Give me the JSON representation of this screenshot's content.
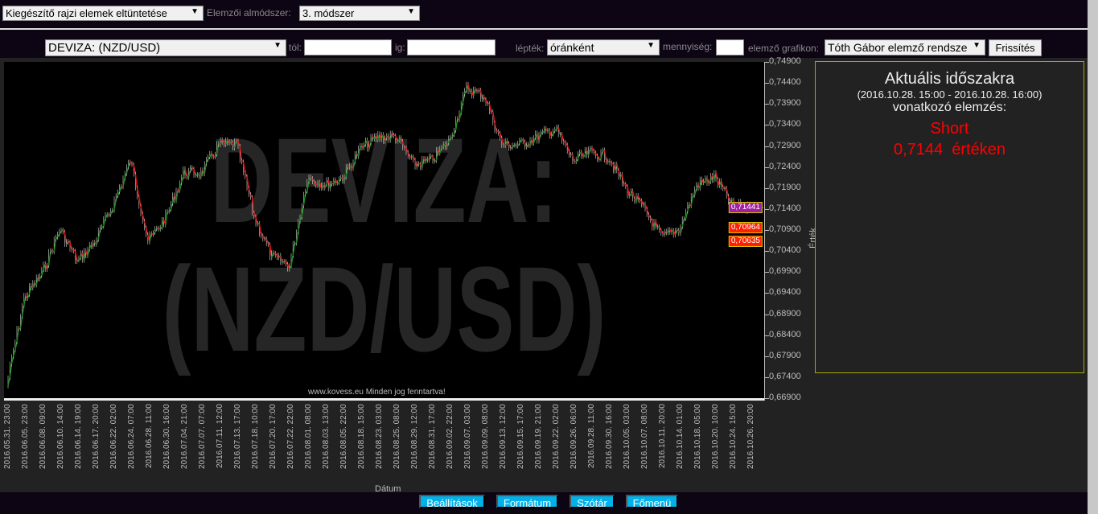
{
  "top": {
    "overlay_select": "Kiegészítő rajzi elemek eltüntetése",
    "submethod_label": "Elemzői almódszer:",
    "submethod_select": "3. módszer"
  },
  "toolbar": {
    "instrument_select": "DEVIZA: (NZD/USD)",
    "from_label": "tól:",
    "from_value": "",
    "to_label": "ig:",
    "to_value": "",
    "scale_label": "lépték:",
    "scale_select": "óránként",
    "quantity_label": "mennyiség:",
    "quantity_value": "",
    "chart_label": "elemző grafikon:",
    "chart_select": "Tóth Gábor elemző rendsze",
    "refresh": "Frissítés"
  },
  "chart_data": {
    "type": "line",
    "watermark": [
      "DEVIZA:",
      "(NZD/USD)"
    ],
    "copyright": "www.kovess.eu Minden jog fenntartva!",
    "xlabel": "Dátum",
    "ylabel": "Érték",
    "ylim": [
      0.669,
      0.749
    ],
    "yticks": [
      "0,74900",
      "0,74400",
      "0,73900",
      "0,73400",
      "0,72900",
      "0,72400",
      "0,71900",
      "0,71400",
      "0,70900",
      "0,70400",
      "0,69900",
      "0,69400",
      "0,68900",
      "0,68400",
      "0,67900",
      "0,67400",
      "0,66900"
    ],
    "x": [
      "2016.05.31. 23:00",
      "2016.06.05. 23:00",
      "2016.06.08. 09:00",
      "2016.06.10. 14:00",
      "2016.06.14. 19:00",
      "2016.06.17. 20:00",
      "2016.06.22. 02:00",
      "2016.06.24. 07:00",
      "2016.06.28. 11:00",
      "2016.06.30. 16:00",
      "2016.07.04. 21:00",
      "2016.07.07. 07:00",
      "2016.07.11. 12:00",
      "2016.07.13. 17:00",
      "2016.07.18. 10:00",
      "2016.07.20. 17:00",
      "2016.07.22. 22:00",
      "2016.08.01. 08:00",
      "2016.08.03. 13:00",
      "2016.08.05. 22:00",
      "2016.08.18. 15:00",
      "2016.08.23. 03:00",
      "2016.08.25. 08:00",
      "2016.08.29. 12:00",
      "2016.08.31. 17:00",
      "2016.09.02. 22:00",
      "2016.09.07. 03:00",
      "2016.09.09. 08:00",
      "2016.09.13. 12:00",
      "2016.09.15. 17:00",
      "2016.09.19. 21:00",
      "2016.09.22. 02:00",
      "2016.09.26. 06:00",
      "2016.09.28. 11:00",
      "2016.09.30. 16:00",
      "2016.10.05. 03:00",
      "2016.10.07. 08:00",
      "2016.10.11. 20:00",
      "2016.10.14. 01:00",
      "2016.10.18. 05:00",
      "2016.10.20. 10:00",
      "2016.10.24. 15:00",
      "2016.10.26. 20:00"
    ],
    "values": [
      0.6719,
      0.6929,
      0.6987,
      0.7092,
      0.7015,
      0.7063,
      0.7149,
      0.7255,
      0.7063,
      0.712,
      0.7226,
      0.7226,
      0.7293,
      0.7293,
      0.712,
      0.7025,
      0.7006,
      0.7216,
      0.7197,
      0.7216,
      0.7283,
      0.7312,
      0.7312,
      0.7245,
      0.7255,
      0.7302,
      0.7427,
      0.7408,
      0.7293,
      0.7293,
      0.7312,
      0.7331,
      0.7255,
      0.7274,
      0.7264,
      0.7188,
      0.714,
      0.7073,
      0.7092,
      0.7197,
      0.7216,
      0.7149,
      0.714
    ],
    "markers": [
      {
        "label": "0,71441",
        "value": 0.71441,
        "color": "#a020a0"
      },
      {
        "label": "0,70964",
        "value": 0.70964,
        "color": "#ff2000"
      },
      {
        "label": "0,70635",
        "value": 0.70635,
        "color": "#ff2000"
      }
    ],
    "up_color": "#1a8a1a",
    "down_color": "#e01010"
  },
  "panel": {
    "title": "Aktuális időszakra",
    "period": "(2016.10.28. 15:00 - 2016.10.28. 16:00)",
    "subtitle": "vonatkozó elemzés:",
    "signal": "Short",
    "value_text": "0,7144  értéken",
    "signal_color": "#ff0000"
  },
  "footer": {
    "settings": "Beállítások",
    "format": "Formátum",
    "dictionary": "Szótár",
    "main_menu": "Főmenü"
  }
}
